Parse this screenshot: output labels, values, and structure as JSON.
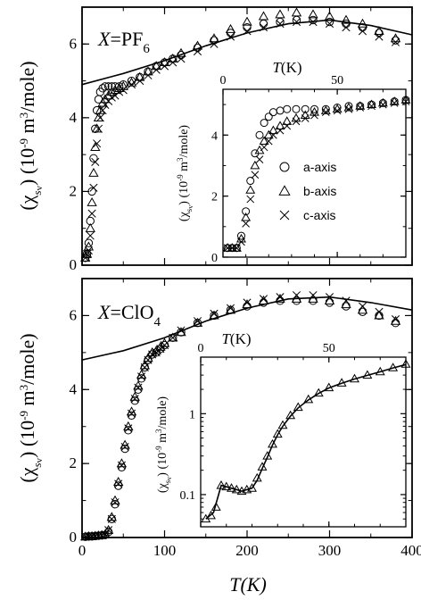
{
  "figure": {
    "shared_xlabel": "T(K)",
    "ylabel_parts": {
      "open": "(χ",
      "sub": "s",
      "sub2": "v",
      "close": ")",
      "unit_a": "(10",
      "exp": "-9",
      "unit_b": " m",
      "exp2": "3",
      "unit_c": "/mole)"
    },
    "inset_xlabel": "T(K)"
  },
  "chart_data": [
    {
      "type": "scatter",
      "panel": "top",
      "title": "X=PF6",
      "title_parts": {
        "x": "X",
        "eq": "=PF",
        "sub": "6"
      },
      "xlim": [
        0,
        400
      ],
      "ylim": [
        0,
        7
      ],
      "xticks": [
        0,
        100,
        200,
        300,
        400
      ],
      "yticks": [
        0,
        2,
        4,
        6
      ],
      "xticklabels": [],
      "yticklabels": [
        "0",
        "2",
        "4",
        "6"
      ],
      "series": [
        {
          "name": "a-axis",
          "marker": "circle",
          "x": [
            4,
            6,
            8,
            10,
            12,
            14,
            16,
            18,
            20,
            22,
            25,
            28,
            32,
            36,
            40,
            45,
            50,
            60,
            70,
            80,
            90,
            100,
            110,
            120,
            140,
            160,
            180,
            200,
            220,
            240,
            260,
            280,
            300,
            320,
            340,
            360,
            380
          ],
          "y": [
            0.2,
            0.3,
            0.6,
            1.2,
            2.0,
            2.9,
            3.7,
            4.2,
            4.5,
            4.7,
            4.8,
            4.85,
            4.85,
            4.85,
            4.85,
            4.85,
            4.9,
            5.0,
            5.1,
            5.25,
            5.4,
            5.5,
            5.6,
            5.7,
            5.9,
            6.1,
            6.3,
            6.45,
            6.55,
            6.6,
            6.65,
            6.65,
            6.6,
            6.55,
            6.45,
            6.3,
            6.1
          ]
        },
        {
          "name": "b-axis",
          "marker": "triangle",
          "x": [
            4,
            6,
            8,
            10,
            12,
            14,
            16,
            18,
            20,
            22,
            25,
            28,
            32,
            36,
            40,
            45,
            50,
            60,
            70,
            80,
            90,
            100,
            110,
            120,
            140,
            160,
            180,
            200,
            220,
            240,
            260,
            280,
            300,
            320,
            340,
            360,
            380
          ],
          "y": [
            0.2,
            0.3,
            0.5,
            1.0,
            1.7,
            2.5,
            3.2,
            3.7,
            4.0,
            4.2,
            4.4,
            4.5,
            4.6,
            4.7,
            4.75,
            4.8,
            4.85,
            4.95,
            5.1,
            5.25,
            5.4,
            5.5,
            5.6,
            5.75,
            5.95,
            6.15,
            6.4,
            6.6,
            6.75,
            6.8,
            6.85,
            6.8,
            6.75,
            6.65,
            6.55,
            6.35,
            6.15
          ]
        },
        {
          "name": "c-axis",
          "marker": "cross",
          "x": [
            4,
            6,
            8,
            10,
            12,
            14,
            16,
            18,
            20,
            22,
            25,
            28,
            32,
            36,
            40,
            45,
            50,
            60,
            70,
            80,
            90,
            100,
            110,
            120,
            140,
            160,
            180,
            200,
            220,
            240,
            260,
            280,
            300,
            320,
            340,
            360,
            380
          ],
          "y": [
            0.2,
            0.3,
            0.4,
            0.8,
            1.4,
            2.1,
            2.8,
            3.3,
            3.7,
            4.0,
            4.2,
            4.35,
            4.45,
            4.55,
            4.6,
            4.7,
            4.75,
            4.9,
            5.0,
            5.15,
            5.3,
            5.4,
            5.5,
            5.6,
            5.8,
            6.0,
            6.2,
            6.35,
            6.45,
            6.55,
            6.6,
            6.6,
            6.55,
            6.45,
            6.35,
            6.2,
            6.05
          ]
        },
        {
          "name": "",
          "marker": "line",
          "x": [
            0,
            50,
            100,
            150,
            200,
            250,
            300,
            350,
            400
          ],
          "y": [
            4.9,
            5.2,
            5.55,
            5.95,
            6.3,
            6.55,
            6.65,
            6.5,
            6.25
          ]
        }
      ],
      "inset": {
        "xlim": [
          0,
          80
        ],
        "ylim": [
          0,
          5.5
        ],
        "xticks": [
          0,
          50
        ],
        "xticklabels": [
          "0",
          "50"
        ],
        "yticks": [
          0,
          2,
          4
        ],
        "yticklabels": [
          "0",
          "2",
          "4"
        ],
        "legend": [
          "a-axis",
          "b-axis",
          "c-axis"
        ],
        "legend_position": "right",
        "series": [
          {
            "name": "a-axis",
            "marker": "circle",
            "x": [
              2,
              4,
              6,
              8,
              10,
              12,
              14,
              16,
              18,
              20,
              22,
              25,
              28,
              32,
              36,
              40,
              45,
              50,
              55,
              60,
              65,
              70,
              75,
              80
            ],
            "y": [
              0.3,
              0.3,
              0.3,
              0.7,
              1.5,
              2.5,
              3.4,
              4.0,
              4.4,
              4.6,
              4.75,
              4.8,
              4.85,
              4.85,
              4.85,
              4.85,
              4.85,
              4.9,
              4.95,
              4.95,
              5.0,
              5.05,
              5.1,
              5.15
            ]
          },
          {
            "name": "b-axis",
            "marker": "triangle",
            "x": [
              2,
              4,
              6,
              8,
              10,
              12,
              14,
              16,
              18,
              20,
              22,
              25,
              28,
              32,
              36,
              40,
              45,
              50,
              55,
              60,
              65,
              70,
              75,
              80
            ],
            "y": [
              0.3,
              0.3,
              0.3,
              0.6,
              1.3,
              2.2,
              3.0,
              3.5,
              3.8,
              4.0,
              4.15,
              4.3,
              4.45,
              4.55,
              4.65,
              4.75,
              4.8,
              4.85,
              4.9,
              4.95,
              5.0,
              5.05,
              5.1,
              5.15
            ]
          },
          {
            "name": "c-axis",
            "marker": "cross",
            "x": [
              2,
              4,
              6,
              8,
              10,
              12,
              14,
              16,
              18,
              20,
              22,
              25,
              28,
              32,
              36,
              40,
              45,
              50,
              55,
              60,
              65,
              70,
              75,
              80
            ],
            "y": [
              0.3,
              0.3,
              0.3,
              0.5,
              1.1,
              1.9,
              2.7,
              3.2,
              3.6,
              3.8,
              4.0,
              4.15,
              4.3,
              4.45,
              4.55,
              4.65,
              4.75,
              4.8,
              4.85,
              4.9,
              4.95,
              5.0,
              5.05,
              5.1
            ]
          }
        ]
      }
    },
    {
      "type": "scatter",
      "panel": "bottom",
      "title": "X=ClO4",
      "title_parts": {
        "x": "X",
        "eq": "=ClO",
        "sub": "4"
      },
      "xlim": [
        0,
        400
      ],
      "ylim": [
        0,
        7
      ],
      "xticks": [
        0,
        100,
        200,
        300,
        400
      ],
      "yticks": [
        0,
        2,
        4,
        6
      ],
      "xticklabels": [
        "0",
        "100",
        "200",
        "300",
        "400"
      ],
      "yticklabels": [
        "0",
        "2",
        "4",
        "6"
      ],
      "series": [
        {
          "name": "a-axis",
          "marker": "circle",
          "x": [
            4,
            8,
            12,
            16,
            20,
            24,
            28,
            32,
            36,
            40,
            44,
            48,
            52,
            56,
            60,
            64,
            68,
            72,
            76,
            80,
            85,
            90,
            95,
            100,
            110,
            120,
            140,
            160,
            180,
            200,
            220,
            240,
            260,
            280,
            300,
            320,
            340,
            360,
            380
          ],
          "y": [
            0.02,
            0.03,
            0.03,
            0.04,
            0.05,
            0.06,
            0.07,
            0.15,
            0.5,
            0.9,
            1.4,
            1.9,
            2.4,
            2.9,
            3.3,
            3.7,
            4.0,
            4.3,
            4.6,
            4.8,
            4.95,
            5.0,
            5.1,
            5.2,
            5.4,
            5.55,
            5.8,
            6.0,
            6.15,
            6.25,
            6.35,
            6.4,
            6.4,
            6.4,
            6.35,
            6.25,
            6.1,
            6.0,
            5.8
          ]
        },
        {
          "name": "b-axis",
          "marker": "triangle",
          "x": [
            4,
            8,
            12,
            16,
            20,
            24,
            28,
            32,
            36,
            40,
            44,
            48,
            52,
            56,
            60,
            64,
            68,
            72,
            76,
            80,
            85,
            90,
            95,
            100,
            110,
            120,
            140,
            160,
            180,
            200,
            220,
            240,
            260,
            280,
            300,
            320,
            340,
            360,
            380
          ],
          "y": [
            0.02,
            0.03,
            0.03,
            0.04,
            0.05,
            0.06,
            0.08,
            0.2,
            0.55,
            1.0,
            1.5,
            2.0,
            2.5,
            3.0,
            3.4,
            3.8,
            4.1,
            4.4,
            4.65,
            4.85,
            5.0,
            5.05,
            5.15,
            5.25,
            5.4,
            5.55,
            5.8,
            6.0,
            6.15,
            6.3,
            6.4,
            6.45,
            6.45,
            6.45,
            6.4,
            6.3,
            6.15,
            6.0,
            5.85
          ]
        },
        {
          "name": "c-axis",
          "marker": "cross",
          "x": [
            4,
            8,
            12,
            16,
            20,
            24,
            28,
            32,
            36,
            40,
            44,
            48,
            52,
            56,
            60,
            64,
            68,
            72,
            76,
            80,
            85,
            90,
            95,
            100,
            110,
            120,
            140,
            160,
            180,
            200,
            220,
            240,
            260,
            280,
            300,
            320,
            340,
            360,
            380
          ],
          "y": [
            0.02,
            0.03,
            0.03,
            0.04,
            0.05,
            0.06,
            0.08,
            0.2,
            0.5,
            0.95,
            1.45,
            1.95,
            2.45,
            2.95,
            3.35,
            3.75,
            4.05,
            4.35,
            4.6,
            4.8,
            4.95,
            5.0,
            5.1,
            5.2,
            5.4,
            5.6,
            5.85,
            6.05,
            6.2,
            6.35,
            6.45,
            6.5,
            6.55,
            6.55,
            6.5,
            6.4,
            6.25,
            6.1,
            5.9
          ]
        },
        {
          "name": "",
          "marker": "line",
          "x": [
            0,
            50,
            100,
            150,
            200,
            250,
            300,
            350,
            400
          ],
          "y": [
            4.8,
            5.05,
            5.4,
            5.85,
            6.2,
            6.45,
            6.5,
            6.35,
            6.15
          ]
        }
      ],
      "inset": {
        "xlim": [
          0,
          80
        ],
        "ylim": [
          0.04,
          5
        ],
        "yscale": "log",
        "xticks": [
          0,
          50
        ],
        "xticklabels": [
          "0",
          "50"
        ],
        "yticks": [
          0.1,
          1
        ],
        "yticklabels": [
          "0.1",
          "1"
        ],
        "series": [
          {
            "name": "",
            "marker": "triangle",
            "x": [
              2,
              4,
              6,
              8,
              10,
              12,
              14,
              16,
              18,
              20,
              22,
              24,
              26,
              28,
              30,
              32,
              35,
              38,
              42,
              46,
              50,
              55,
              60,
              65,
              70,
              75,
              80
            ],
            "y": [
              0.05,
              0.055,
              0.07,
              0.13,
              0.125,
              0.12,
              0.115,
              0.11,
              0.115,
              0.12,
              0.16,
              0.22,
              0.3,
              0.42,
              0.56,
              0.72,
              0.95,
              1.2,
              1.5,
              1.8,
              2.1,
              2.4,
              2.7,
              3.0,
              3.3,
              3.7,
              4.1
            ]
          },
          {
            "name": "",
            "marker": "line",
            "x": [
              2,
              5,
              8,
              10,
              12,
              14,
              16,
              18,
              20,
              22,
              24,
              26,
              28,
              30,
              32,
              35,
              38,
              42,
              46,
              50,
              55,
              60,
              65,
              70,
              75,
              80
            ],
            "y": [
              0.05,
              0.06,
              0.13,
              0.125,
              0.12,
              0.115,
              0.11,
              0.115,
              0.12,
              0.15,
              0.21,
              0.29,
              0.41,
              0.55,
              0.7,
              0.93,
              1.18,
              1.48,
              1.78,
              2.08,
              2.38,
              2.68,
              2.98,
              3.3,
              3.68,
              4.05
            ]
          }
        ]
      }
    }
  ]
}
